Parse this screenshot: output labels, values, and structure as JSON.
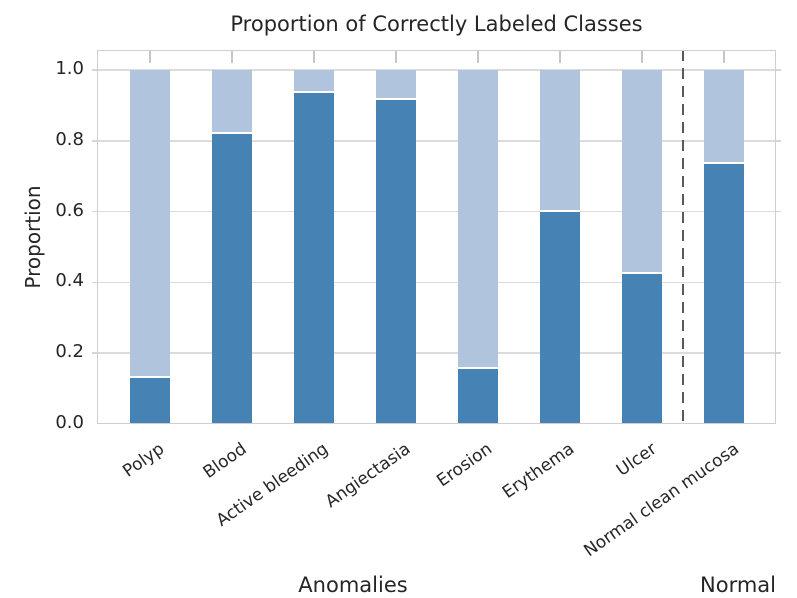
{
  "title": "Proportion of Correctly Labeled Classes",
  "y_axis": {
    "label": "Proportion",
    "ticks": [
      "1.0",
      "0.8",
      "0.6",
      "0.4",
      "0.2",
      "0.0"
    ]
  },
  "x_axis": {
    "group_labels": [
      "Anomalies",
      "Normal"
    ]
  },
  "colors": {
    "dark_blue": "#4682b4",
    "light_blue": "#b0c4de",
    "gridline": "#dcdcdc",
    "plot_border": "#cfcfcf",
    "separator": "#595959",
    "text": "#262626"
  },
  "chart_data": {
    "type": "bar",
    "stacked": true,
    "title": "Proportion of Correctly Labeled Classes",
    "ylabel": "Proportion",
    "ylim": [
      0.0,
      1.06
    ],
    "y_ticks": [
      0.0,
      0.2,
      0.4,
      0.6,
      0.8,
      1.0
    ],
    "grid": true,
    "legend": "none",
    "categories": [
      "Polyp",
      "Blood",
      "Active bleeding",
      "Angiectasia",
      "Erosion",
      "Erythema",
      "Ulcer",
      "Normal clean mucosa"
    ],
    "series": [
      {
        "name": "correct_bottom_segment",
        "color": "#4682b4",
        "values": [
          0.13,
          0.82,
          0.935,
          0.915,
          0.155,
          0.6,
          0.425,
          0.735
        ]
      },
      {
        "name": "remainder_top_segment",
        "color": "#b0c4de",
        "values": [
          0.87,
          0.18,
          0.065,
          0.085,
          0.845,
          0.4,
          0.575,
          0.265
        ]
      }
    ],
    "groups": [
      {
        "label": "Anomalies",
        "categories": [
          "Polyp",
          "Blood",
          "Active bleeding",
          "Angiectasia",
          "Erosion",
          "Erythema",
          "Ulcer"
        ]
      },
      {
        "label": "Normal",
        "categories": [
          "Normal clean mucosa"
        ]
      }
    ],
    "separator": {
      "between": [
        "Ulcer",
        "Normal clean mucosa"
      ],
      "style": "dashed",
      "color": "#595959"
    }
  }
}
